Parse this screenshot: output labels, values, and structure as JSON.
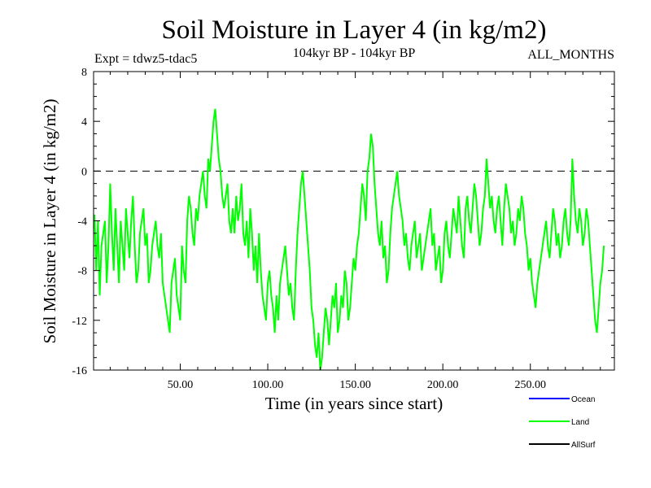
{
  "chart_data": {
    "type": "line",
    "title": "Soil Moisture in Layer 4 (in kg/m2)",
    "subtitle_left": "Expt = tdwz5-tdac5",
    "subtitle_center": "104kyr BP - 104kyr BP",
    "subtitle_right": "ALL_MONTHS",
    "xlabel": "Time (in years since start)",
    "ylabel": "Soil Moisture in Layer 4 (in kg/m2)",
    "xlim": [
      0.5,
      298
    ],
    "ylim": [
      -16,
      8
    ],
    "x_ticks": [
      50,
      100,
      150,
      200,
      250
    ],
    "x_tick_labels": [
      "50.00",
      "100.00",
      "150.00",
      "200.00",
      "250.00"
    ],
    "y_ticks": [
      8,
      4,
      0,
      -4,
      -8,
      -12,
      -16
    ],
    "y_tick_labels": [
      "8",
      "4",
      "0",
      "-4",
      "-8",
      "-12",
      "-16"
    ],
    "zero_line": true,
    "grid": false,
    "legend_position": "bottom-right",
    "legend": [
      {
        "name": "Ocean",
        "color": "#0000ff"
      },
      {
        "name": "Land",
        "color": "#00ff00"
      },
      {
        "name": "AllSurf",
        "color": "#000000"
      }
    ],
    "series": [
      {
        "name": "Land",
        "color": "#00ff00",
        "x_start": 1,
        "x_step": 1,
        "values": [
          -3.5,
          -8,
          -4,
          -10,
          -6,
          -5,
          -4,
          -9,
          -6,
          -1,
          -5,
          -8,
          -3,
          -6,
          -9,
          -4,
          -6,
          -8,
          -3,
          -5,
          -7,
          -4,
          -2,
          -6,
          -9,
          -8,
          -5,
          -4,
          -3,
          -6,
          -5,
          -9,
          -8,
          -6,
          -5,
          -4,
          -6,
          -7,
          -5,
          -9,
          -10,
          -11,
          -12,
          -13,
          -9,
          -8,
          -7,
          -10,
          -11,
          -12,
          -6,
          -8,
          -9,
          -4,
          -2,
          -3,
          -5,
          -6,
          -3,
          -4,
          -2,
          -1,
          0,
          -2,
          -3,
          1,
          0,
          2,
          4,
          5,
          3,
          1,
          0,
          -2,
          -3,
          -2,
          -1,
          -4,
          -5,
          -3,
          -5,
          -2,
          -4,
          -3,
          -1,
          -5,
          -6,
          -4,
          -7,
          -3,
          -5,
          -8,
          -6,
          -9,
          -5,
          -8,
          -10,
          -11,
          -12,
          -9,
          -8,
          -10,
          -11,
          -13,
          -10,
          -12,
          -9,
          -8,
          -7,
          -6,
          -8,
          -10,
          -9,
          -11,
          -12,
          -8,
          -5,
          -3,
          -1,
          0,
          -2,
          -4,
          -6,
          -8,
          -11,
          -12,
          -14,
          -15,
          -13,
          -16,
          -15,
          -13,
          -11,
          -12,
          -14,
          -12,
          -10,
          -11,
          -9,
          -13,
          -12,
          -10,
          -11,
          -8,
          -9,
          -12,
          -11,
          -9,
          -7,
          -8,
          -6,
          -5,
          -3,
          -1,
          -2,
          -4,
          0,
          1,
          3,
          2,
          -1,
          -3,
          -5,
          -6,
          -4,
          -7,
          -6,
          -9,
          -8,
          -5,
          -3,
          -2,
          -1,
          0,
          -2,
          -3,
          -4,
          -6,
          -5,
          -7,
          -8,
          -6,
          -5,
          -4,
          -7,
          -6,
          -5,
          -8,
          -7,
          -6,
          -5,
          -4,
          -3,
          -6,
          -5,
          -8,
          -7,
          -6,
          -9,
          -8,
          -5,
          -4,
          -6,
          -7,
          -5,
          -3,
          -4,
          -5,
          -2,
          -4,
          -6,
          -7,
          -3,
          -2,
          -4,
          -5,
          -3,
          -1,
          -2,
          -4,
          -6,
          -5,
          -3,
          -2,
          1,
          -1,
          -3,
          -2,
          -4,
          -5,
          -3,
          -2,
          -4,
          -6,
          -3,
          -1,
          -2,
          -3,
          -5,
          -4,
          -6,
          -5,
          -3,
          -4,
          -2,
          -3,
          -5,
          -6,
          -8,
          -7,
          -9,
          -10,
          -11,
          -9,
          -8,
          -7,
          -6,
          -5,
          -4,
          -6,
          -7,
          -5,
          -3,
          -4,
          -6,
          -5,
          -7,
          -6,
          -4,
          -3,
          -5,
          -6,
          -4,
          1,
          -2,
          -4,
          -5,
          -3,
          -4,
          -6,
          -5,
          -3,
          -4,
          -6,
          -8,
          -10,
          -12,
          -13,
          -11,
          -9,
          -8,
          -6
        ]
      },
      {
        "name": "Ocean",
        "color": "#0000ff",
        "values": []
      },
      {
        "name": "AllSurf",
        "color": "#000000",
        "values": []
      }
    ]
  }
}
